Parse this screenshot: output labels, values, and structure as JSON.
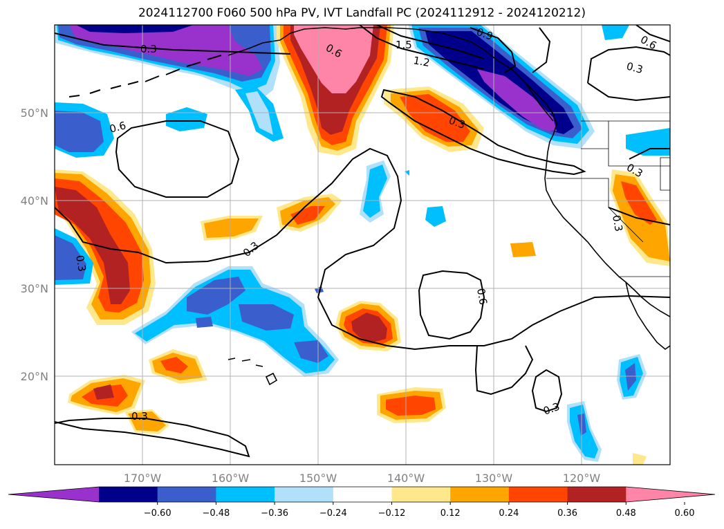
{
  "title": "2024112700 F060 500 hPa PV, IVT Landfall PC (2024112912 - 2024120212)",
  "map": {
    "projection": "PlateCarree",
    "lon_range": [
      -180,
      -110
    ],
    "lat_range": [
      10,
      60
    ],
    "lon_ticks": [
      {
        "lon": -170,
        "label": "170°W"
      },
      {
        "lon": -160,
        "label": "160°W"
      },
      {
        "lon": -150,
        "label": "150°W"
      },
      {
        "lon": -140,
        "label": "140°W"
      },
      {
        "lon": -130,
        "label": "130°W"
      },
      {
        "lon": -120,
        "label": "120°W"
      }
    ],
    "lat_ticks": [
      {
        "lat": 20,
        "label": "20°N"
      },
      {
        "lat": 30,
        "label": "30°N"
      },
      {
        "lat": 40,
        "label": "40°N"
      },
      {
        "lat": 50,
        "label": "50°N"
      }
    ],
    "gridlines": true,
    "contour_labels": [
      "0.3",
      "0.3",
      "0.3",
      "0.3",
      "0.3",
      "0.3",
      "0.3",
      "0.3",
      "0.6",
      "0.6",
      "0.6",
      "0.6",
      "0.9",
      "1.2",
      "1.5"
    ]
  },
  "colorbar": {
    "extend": "both",
    "levels": [
      -0.72,
      -0.6,
      -0.48,
      -0.36,
      -0.24,
      -0.12,
      0.12,
      0.24,
      0.36,
      0.48,
      0.6,
      0.72
    ],
    "tick_labels": [
      "−0.60",
      "−0.48",
      "−0.36",
      "−0.24",
      "−0.12",
      "0.12",
      "0.24",
      "0.36",
      "0.48",
      "0.60"
    ],
    "colors": [
      "#9932cc",
      "#00008b",
      "#3a5fcd",
      "#00bfff",
      "#b0e0fa",
      "#ffffff",
      "#ffe88c",
      "#ffa500",
      "#ff4500",
      "#b22222",
      "#ff85a8"
    ]
  }
}
